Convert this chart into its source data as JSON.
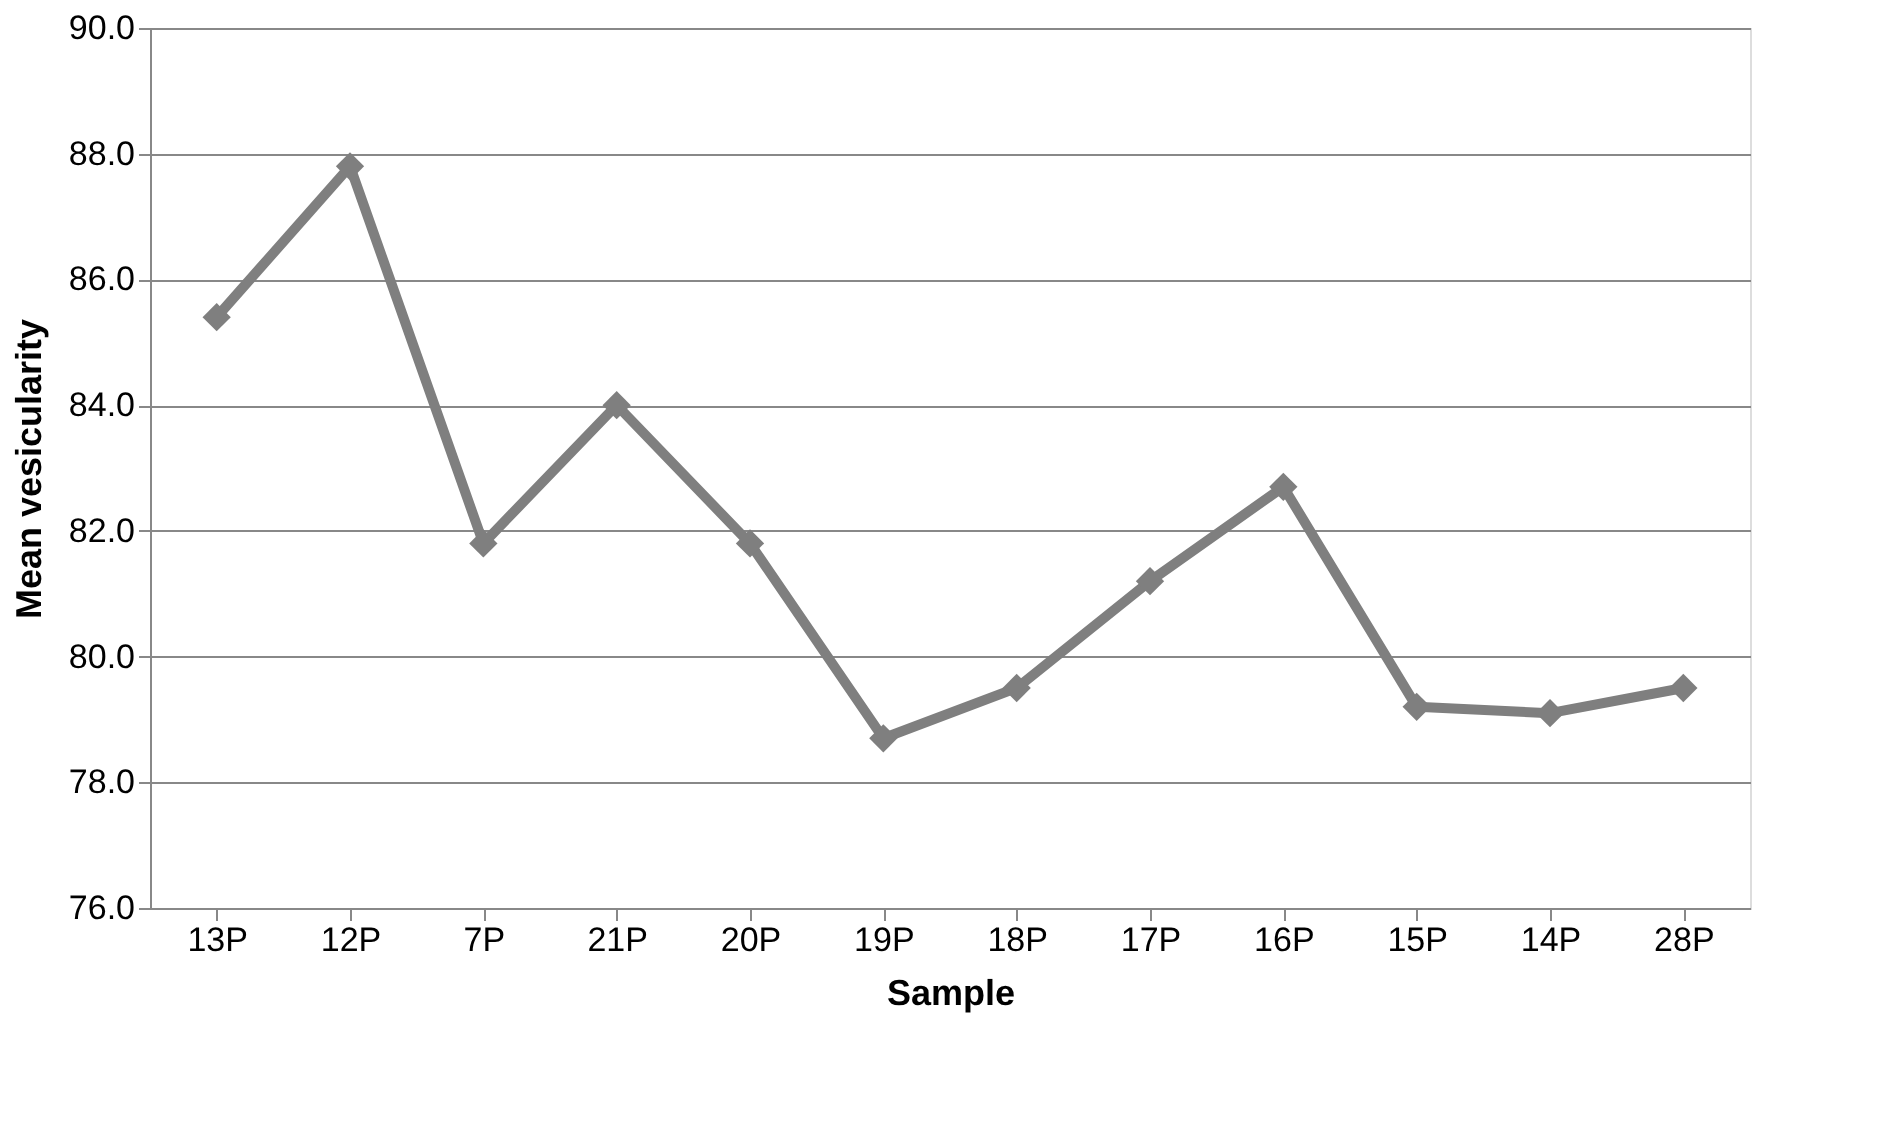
{
  "chart_data": {
    "type": "line",
    "xlabel": "Sample",
    "ylabel": "Mean vesicularity",
    "categories": [
      "13P",
      "12P",
      "7P",
      "21P",
      "20P",
      "19P",
      "18P",
      "17P",
      "16P",
      "15P",
      "14P",
      "28P"
    ],
    "series": [
      {
        "color": "#7f7f7f",
        "values": [
          85.4,
          87.8,
          81.8,
          84.0,
          81.8,
          78.7,
          79.5,
          81.2,
          82.7,
          79.2,
          79.1,
          79.5
        ]
      }
    ],
    "ylim": [
      76,
      90
    ],
    "yticks": [
      {
        "value": 76,
        "label": "76.0"
      },
      {
        "value": 78,
        "label": "78.0"
      },
      {
        "value": 80,
        "label": "80.0"
      },
      {
        "value": 82,
        "label": "82.0"
      },
      {
        "value": 84,
        "label": "84.0"
      },
      {
        "value": 86,
        "label": "86.0"
      },
      {
        "value": 88,
        "label": "88.0"
      },
      {
        "value": 90,
        "label": "90.0"
      }
    ],
    "grid": "y",
    "marker": "diamond",
    "line_style": "solid"
  }
}
